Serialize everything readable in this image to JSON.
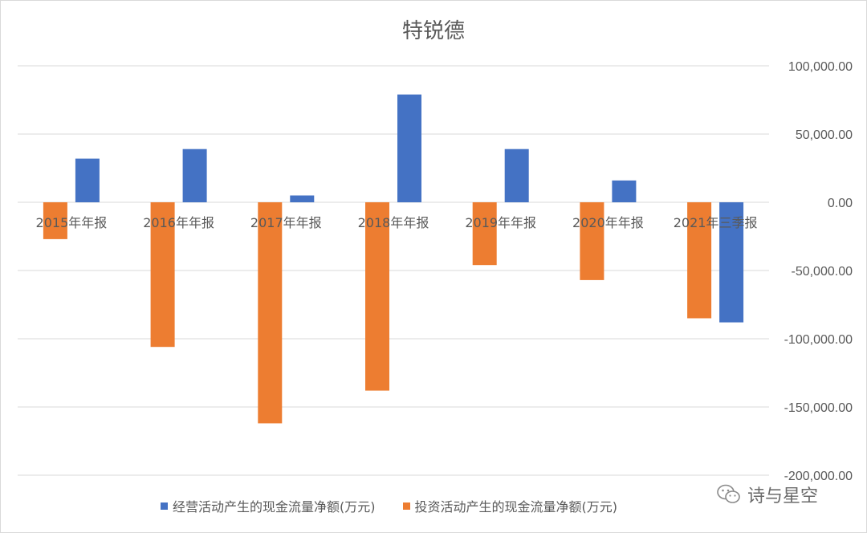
{
  "colors": {
    "series1": "#4472C4",
    "series2": "#ED7D31",
    "grid": "#d9d9d9",
    "text": "#595959"
  },
  "watermark": {
    "icon": "wechat-icon",
    "text": "诗与星空"
  },
  "chart_data": {
    "type": "bar",
    "title": "特锐德",
    "categories": [
      "2015年年报",
      "2016年年报",
      "2017年年报",
      "2018年年报",
      "2019年年报",
      "2020年年报",
      "2021年三季报"
    ],
    "series": [
      {
        "name": "经营活动产生的现金流量净额(万元)",
        "values": [
          32000,
          39000,
          5000,
          79000,
          39000,
          16000,
          -88000
        ]
      },
      {
        "name": "投资活动产生的现金流量净额(万元)",
        "values": [
          -27000,
          -106000,
          -162000,
          -138000,
          -46000,
          -57000,
          -85000
        ]
      }
    ],
    "ylim": [
      -200000,
      100000
    ],
    "yticks": [
      100000,
      50000,
      0,
      -50000,
      -100000,
      -150000,
      -200000
    ],
    "ytick_labels": [
      "100,000.00",
      "50,000.00",
      "0.00",
      "-50,000.00",
      "-100,000.00",
      "-150,000.00",
      "-200,000.00"
    ],
    "y_axis_side": "right",
    "grid": true,
    "legend": "bottom"
  }
}
